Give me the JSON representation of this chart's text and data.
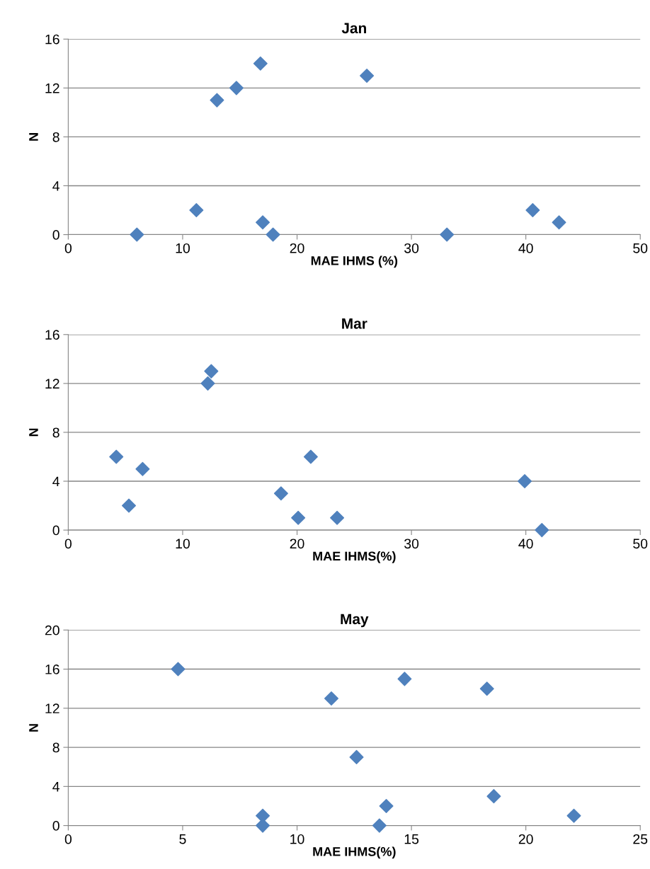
{
  "chart_data": [
    {
      "type": "scatter",
      "title": "Jan",
      "xlabel": "MAE IHMS (%)",
      "ylabel": "N",
      "marker": "diamond",
      "grid": "y",
      "x": [
        6.0,
        11.2,
        13.0,
        14.7,
        16.8,
        17.0,
        17.9,
        26.1,
        33.1,
        40.6,
        42.9
      ],
      "values": [
        0,
        2,
        11,
        12,
        14,
        1,
        0,
        13,
        0,
        2,
        1
      ],
      "color": "#4f81bd",
      "xlim": [
        0,
        50
      ],
      "xticks": [
        0,
        10,
        20,
        30,
        40,
        50
      ],
      "ylim": [
        0,
        16
      ],
      "yticks": [
        0,
        4,
        8,
        12,
        16
      ]
    },
    {
      "type": "scatter",
      "title": "Mar",
      "xlabel": "MAE IHMS(%)",
      "ylabel": "N",
      "marker": "diamond",
      "grid": "y",
      "x": [
        4.2,
        5.3,
        6.5,
        12.2,
        12.5,
        18.6,
        20.1,
        21.2,
        23.5,
        39.9,
        41.4
      ],
      "values": [
        6,
        2,
        5,
        12,
        13,
        3,
        1,
        6,
        1,
        4,
        0
      ],
      "color": "#4f81bd",
      "xlim": [
        0,
        50
      ],
      "xticks": [
        0,
        10,
        20,
        30,
        40,
        50
      ],
      "ylim": [
        0,
        16
      ],
      "yticks": [
        0,
        4,
        8,
        12,
        16
      ]
    },
    {
      "type": "scatter",
      "title": "May",
      "xlabel": "MAE IHMS(%)",
      "ylabel": "N",
      "marker": "diamond",
      "grid": "y",
      "x": [
        4.8,
        8.5,
        8.5,
        11.5,
        12.6,
        13.6,
        13.9,
        14.7,
        18.3,
        18.6,
        22.1
      ],
      "values": [
        16,
        1,
        0,
        13,
        7,
        0,
        2,
        15,
        14,
        3,
        1
      ],
      "color": "#4f81bd",
      "xlim": [
        0,
        25
      ],
      "xticks": [
        0,
        5,
        10,
        15,
        20,
        25
      ],
      "ylim": [
        0,
        20
      ],
      "yticks": [
        0,
        4,
        8,
        12,
        16,
        20
      ]
    }
  ]
}
